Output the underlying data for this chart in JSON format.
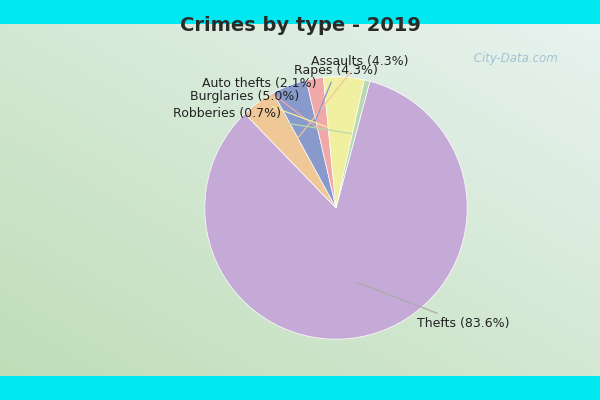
{
  "title": "Crimes by type - 2019",
  "slices": [
    {
      "label": "Thefts",
      "pct": 83.6,
      "color": "#c5aad8"
    },
    {
      "label": "Assaults",
      "pct": 4.3,
      "color": "#f0c898"
    },
    {
      "label": "Rapes",
      "pct": 4.3,
      "color": "#8899cc"
    },
    {
      "label": "Auto thefts",
      "pct": 2.1,
      "color": "#f0a8a8"
    },
    {
      "label": "Burglaries",
      "pct": 5.0,
      "color": "#f0f0a0"
    },
    {
      "label": "Robberies",
      "pct": 0.7,
      "color": "#b8d8b0"
    }
  ],
  "background_cyan": "#00e8f0",
  "title_fontsize": 14,
  "label_fontsize": 9,
  "watermark": " City-Data.com",
  "startangle": 75,
  "label_positions": [
    {
      "label": "Thefts (83.6%)",
      "xt": 0.62,
      "yt": -0.88,
      "ha": "left"
    },
    {
      "label": "Assaults (4.3%)",
      "xt": 0.18,
      "yt": 1.12,
      "ha": "center"
    },
    {
      "label": "Rapes (4.3%)",
      "xt": 0.0,
      "yt": 1.05,
      "ha": "center"
    },
    {
      "label": "Auto thefts (2.1%)",
      "xt": -0.15,
      "yt": 0.95,
      "ha": "right"
    },
    {
      "label": "Burglaries (5.0%)",
      "xt": -0.28,
      "yt": 0.85,
      "ha": "right"
    },
    {
      "label": "Robberies (0.7%)",
      "xt": -0.42,
      "yt": 0.72,
      "ha": "right"
    }
  ]
}
